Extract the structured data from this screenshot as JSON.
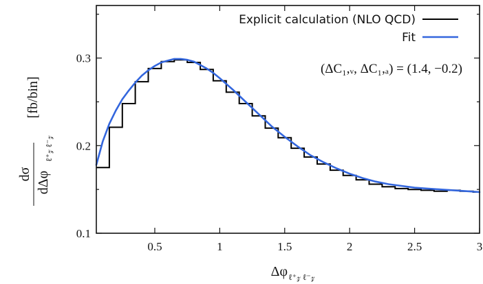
{
  "chart_data": {
    "type": "line",
    "xlim": [
      0.05,
      3.0
    ],
    "ylim": [
      0.1,
      0.36
    ],
    "xticks": [
      0.5,
      1,
      1.5,
      2,
      2.5,
      3
    ],
    "xtick_labels": [
      "0.5",
      "1",
      "1.5",
      "2",
      "2.5",
      "3"
    ],
    "yticks": [
      0.1,
      0.2,
      0.3
    ],
    "ytick_labels": [
      "0.1",
      "0.2",
      "0.3"
    ],
    "grid": false,
    "legend": "top-right",
    "xlabel": {
      "main": "Δφ",
      "sub": "ℓ⁺𝓏 ℓ⁻𝓏"
    },
    "ylabel": {
      "num": "dσ",
      "den": "dΔφ",
      "den_sub": "ℓ⁺𝓏 ℓ⁻𝓏",
      "unit": "[fb/bin]"
    },
    "annotation": "(ΔC₁,ᵥ, ΔC₁,ₐ) = (1.4, −0.2)",
    "series": [
      {
        "name": "Explicit calculation (NLO QCD)",
        "style": "histogram",
        "color": "#000000",
        "bin_width": 0.1,
        "x_start": 0.05,
        "values": [
          0.175,
          0.221,
          0.248,
          0.273,
          0.288,
          0.296,
          0.298,
          0.295,
          0.287,
          0.274,
          0.261,
          0.248,
          0.234,
          0.22,
          0.209,
          0.197,
          0.187,
          0.179,
          0.172,
          0.166,
          0.161,
          0.156,
          0.153,
          0.151,
          0.15,
          0.149,
          0.148,
          0.149,
          0.148,
          0.147
        ]
      },
      {
        "name": "Fit",
        "style": "line",
        "color": "#3366dd",
        "x": [
          0.05,
          0.1,
          0.15,
          0.2,
          0.25,
          0.3,
          0.35,
          0.4,
          0.45,
          0.5,
          0.55,
          0.6,
          0.65,
          0.7,
          0.75,
          0.8,
          0.85,
          0.9,
          0.95,
          1.0,
          1.1,
          1.2,
          1.3,
          1.4,
          1.5,
          1.6,
          1.7,
          1.8,
          1.9,
          2.0,
          2.1,
          2.2,
          2.3,
          2.4,
          2.5,
          2.6,
          2.7,
          2.8,
          2.9,
          3.0
        ],
        "y": [
          0.178,
          0.205,
          0.225,
          0.24,
          0.253,
          0.263,
          0.272,
          0.28,
          0.286,
          0.291,
          0.295,
          0.297,
          0.299,
          0.299,
          0.298,
          0.296,
          0.292,
          0.288,
          0.283,
          0.277,
          0.264,
          0.25,
          0.236,
          0.222,
          0.21,
          0.199,
          0.189,
          0.181,
          0.174,
          0.168,
          0.163,
          0.159,
          0.156,
          0.154,
          0.152,
          0.151,
          0.15,
          0.149,
          0.148,
          0.147
        ]
      }
    ]
  }
}
